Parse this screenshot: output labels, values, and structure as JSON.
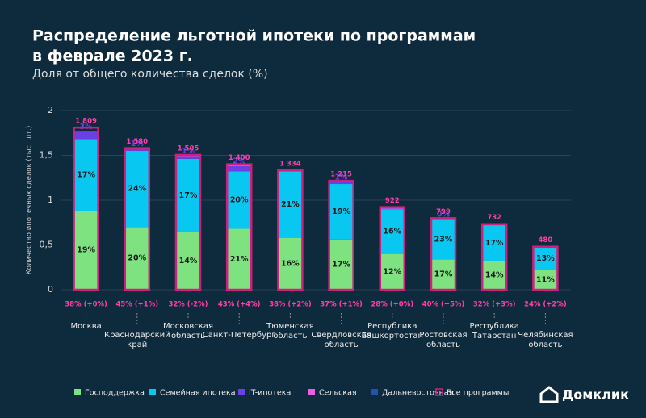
{
  "chart_data": {
    "type": "stacked_bar",
    "title": "Распределение льготной ипотеки по программам",
    "title_line2": "в феврале 2023 г.",
    "subtitle": "Доля от общего количества сделок (%)",
    "y_label": "Количество ипотечных сделок (тыс. шт.)",
    "categories": [
      "Москва",
      "Краснодарский край",
      "Московская область",
      "Санкт-Петербург",
      "Тюменская область",
      "Свердловская область",
      "Республика Башкортостан",
      "Ростовская область",
      "Республика Татарстан",
      "Челябинская область"
    ],
    "ylim": [
      0,
      2
    ],
    "yticks": [
      0,
      {
        "value": 0.5,
        "label": "0,5"
      },
      1,
      {
        "value": 1.5,
        "label": "1,5"
      },
      2
    ],
    "series": [
      {
        "name": "Господдержка",
        "color": "#7de27f",
        "values": [
          0.88,
          0.7,
          0.64,
          0.68,
          0.58,
          0.56,
          0.4,
          0.34,
          0.32,
          0.22
        ],
        "share_labels": [
          "19%",
          "20%",
          "14%",
          "21%",
          "16%",
          "17%",
          "12%",
          "17%",
          "14%",
          "11%"
        ]
      },
      {
        "name": "Семейная ипотека",
        "color": "#08c8f2",
        "values": [
          0.8,
          0.85,
          0.82,
          0.64,
          0.74,
          0.62,
          0.5,
          0.44,
          0.4,
          0.25
        ],
        "share_labels": [
          "17%",
          "24%",
          "17%",
          "20%",
          "21%",
          "19%",
          "16%",
          "23%",
          "17%",
          "13%"
        ]
      },
      {
        "name": "IT-ипотека",
        "color": "#6b3fe6",
        "values": [
          0.08,
          0.02,
          0.03,
          0.06,
          0.005,
          0.02,
          0.005,
          0.005,
          0.005,
          0.005
        ],
        "share_labels": [
          "3%",
          "1%",
          "1%",
          "2%",
          null,
          "1%",
          null,
          "0%",
          null,
          null
        ]
      },
      {
        "name": "Сельская",
        "color": "#e85fe0",
        "values": [
          0.01,
          0.01,
          0.01,
          0.01,
          0.005,
          0.01,
          0.01,
          0.01,
          0.005,
          0.005
        ]
      },
      {
        "name": "Дальневосточная",
        "color": "#1f55b0",
        "values": [
          0,
          0,
          0,
          0,
          0,
          0,
          0,
          0,
          0,
          0
        ]
      }
    ],
    "total": {
      "name": "Все программы",
      "color": "#d0207f",
      "values": [
        1.809,
        1.58,
        1.505,
        1.4,
        1.334,
        1.215,
        0.922,
        0.799,
        0.732,
        0.48
      ],
      "value_labels": [
        "1 809",
        "1 580",
        "1 505",
        "1 400",
        "1 334",
        "1 215",
        "922",
        "799",
        "732",
        "480"
      ]
    },
    "bottom_labels": [
      "38% (+0%)",
      "45% (+1%)",
      "32% (-2%)",
      "43% (+4%)",
      "38% (+2%)",
      "37% (+1%)",
      "28% (+0%)",
      "40% (+5%)",
      "32% (+3%)",
      "24% (+2%)"
    ],
    "logo": "Домклик"
  }
}
